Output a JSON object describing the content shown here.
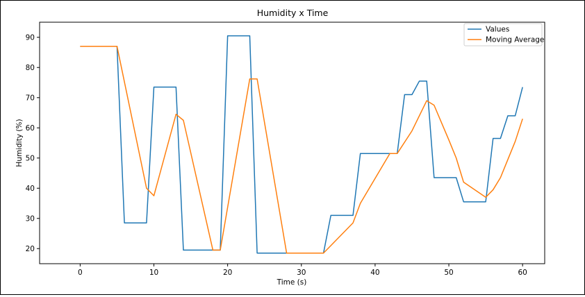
{
  "chart_data": {
    "type": "line",
    "title": "Humidity x Time",
    "xlabel": "Time (s)",
    "ylabel": "Humidity (%)",
    "xlim": [
      -5.5,
      63
    ],
    "ylim": [
      15,
      95
    ],
    "xticks": [
      0,
      10,
      20,
      30,
      40,
      50,
      60
    ],
    "yticks": [
      20,
      30,
      40,
      50,
      60,
      70,
      80,
      90
    ],
    "grid": false,
    "legend_position": "top-right",
    "series": [
      {
        "name": "Values",
        "color": "#1f77b4",
        "x": [
          0,
          1,
          2,
          3,
          4,
          5,
          6,
          7,
          8,
          9,
          10,
          11,
          12,
          13,
          14,
          15,
          16,
          17,
          18,
          19,
          20,
          21,
          22,
          23,
          24,
          25,
          26,
          27,
          28,
          29,
          30,
          31,
          32,
          33,
          34,
          35,
          36,
          37,
          38,
          39,
          40,
          41,
          42,
          43,
          44,
          45,
          46,
          47,
          48,
          49,
          50,
          51,
          52,
          53,
          54,
          55,
          56,
          57,
          58,
          59,
          60
        ],
        "y": [
          87,
          87,
          87,
          87,
          87,
          87,
          28.5,
          28.5,
          28.5,
          28.5,
          73.5,
          73.5,
          73.5,
          73.5,
          19.5,
          19.5,
          19.5,
          19.5,
          19.5,
          19.5,
          90.5,
          90.5,
          90.5,
          90.5,
          18.5,
          18.5,
          18.5,
          18.5,
          18.5,
          18.5,
          18.5,
          18.5,
          18.5,
          18.5,
          31,
          31,
          31,
          31,
          51.5,
          51.5,
          51.5,
          51.5,
          51.5,
          51.5,
          71,
          71,
          75.5,
          75.5,
          43.5,
          43.5,
          43.5,
          43.5,
          35.5,
          35.5,
          35.5,
          35.5,
          56.5,
          56.5,
          64,
          64,
          73.5
        ]
      },
      {
        "name": "Moving Average",
        "color": "#ff7f0e",
        "x": [
          0,
          1,
          2,
          3,
          4,
          5,
          9,
          10,
          13,
          14,
          18,
          19,
          23,
          24,
          28,
          29,
          33,
          37,
          38,
          42,
          43,
          45,
          47,
          48,
          50,
          51,
          52,
          55,
          56,
          57,
          58,
          59,
          60
        ],
        "y": [
          87,
          87,
          87,
          87,
          87,
          87,
          40,
          37.5,
          64.5,
          62.5,
          19.5,
          19.5,
          76.2,
          76.2,
          18.5,
          18.5,
          18.5,
          28.5,
          35,
          51.5,
          51.5,
          59,
          69,
          67.5,
          56,
          50,
          42,
          37,
          39.5,
          43.5,
          49.5,
          55.5,
          63
        ]
      }
    ]
  }
}
